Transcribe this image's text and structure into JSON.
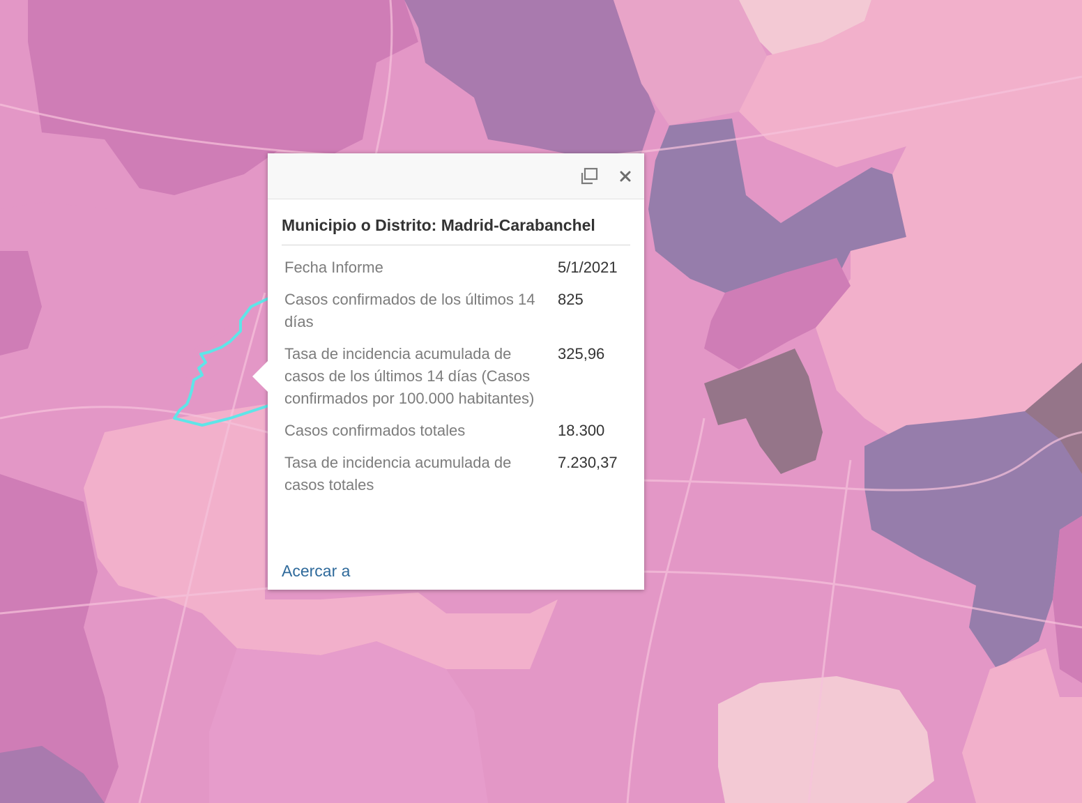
{
  "map": {
    "colors": {
      "base": "#e397c6",
      "light_pink": "#f2b0cb",
      "pale": "#f3c9d4",
      "magenta": "#cf7db6",
      "purple": "#a97aae",
      "violet": "#967dab",
      "dark_mauve": "#957589",
      "highlight": "#5fe5e8"
    }
  },
  "popup": {
    "dock_icon": "dock-icon",
    "close_icon": "close-icon",
    "title": "Municipio o Distrito: Madrid-Carabanchel",
    "rows": [
      {
        "label": "Fecha Informe",
        "value": "5/1/2021"
      },
      {
        "label": "Casos confirmados de los últimos 14 días",
        "value": "825"
      },
      {
        "label": "Tasa de incidencia acumulada de casos de los últimos 14 días (Casos confirmados por 100.000 habitantes)",
        "value": "325,96"
      },
      {
        "label": "Casos confirmados totales",
        "value": "18.300"
      },
      {
        "label": "Tasa de incidencia acumulada de casos totales",
        "value": "7.230,37"
      }
    ],
    "zoom_link": "Acercar a"
  }
}
